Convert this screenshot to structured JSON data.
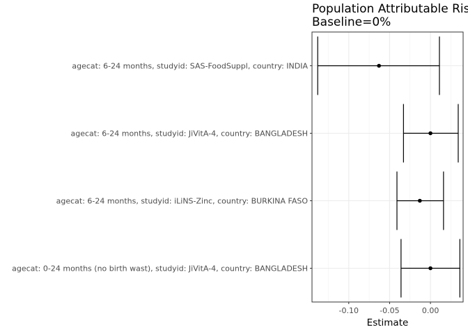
{
  "chart_data": {
    "type": "forest",
    "title_line1": "Population Attributable Risks",
    "title_line2": "Baseline=0%",
    "xlabel": "Estimate",
    "ylabel": "",
    "xlim": [
      -0.145,
      0.04
    ],
    "x_ticks": [
      -0.1,
      -0.05,
      0.0
    ],
    "x_tick_labels": [
      "-0.10",
      "-0.05",
      "0.00"
    ],
    "grid": true,
    "categories": [
      "agecat: 6-24 months, studyid: SAS-FoodSuppl, country: INDIA",
      "agecat: 6-24 months, studyid: JiVitA-4, country: BANGLADESH",
      "agecat: 6-24 months, studyid: iLiNS-Zinc, country: BURKINA FASO",
      "agecat: 0-24 months (no birth wast), studyid: JiVitA-4, country: BANGLADESH"
    ],
    "estimates": [
      {
        "estimate": -0.063,
        "lower": -0.138,
        "upper": 0.011
      },
      {
        "estimate": 0.0,
        "lower": -0.033,
        "upper": 0.034
      },
      {
        "estimate": -0.013,
        "lower": -0.041,
        "upper": 0.016
      },
      {
        "estimate": 0.0,
        "lower": -0.036,
        "upper": 0.036
      }
    ]
  }
}
